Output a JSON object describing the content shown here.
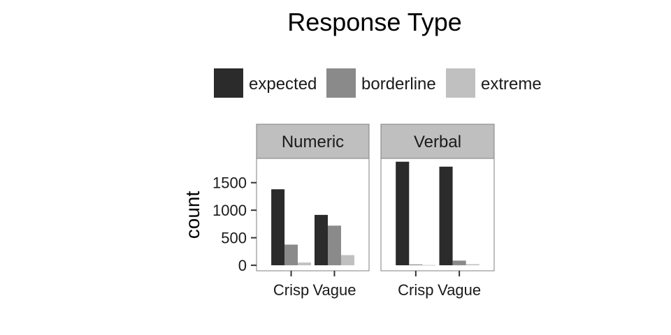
{
  "chart_data": {
    "type": "bar",
    "title": "Response Type",
    "ylabel": "count",
    "xlabel": "",
    "ylim": [
      0,
      1900
    ],
    "yticks": [
      0,
      500,
      1000,
      1500
    ],
    "yticks_text": [
      "0",
      "500",
      "1000",
      "1500"
    ],
    "categories": [
      "Crisp",
      "Vague"
    ],
    "legend": {
      "position": "top",
      "entries": [
        {
          "name": "expected",
          "color": "#2b2b2b"
        },
        {
          "name": "borderline",
          "color": "#8a8a8a"
        },
        {
          "name": "extreme",
          "color": "#c0c0c0"
        }
      ]
    },
    "panels": [
      {
        "facet": "Numeric",
        "series": [
          {
            "name": "expected",
            "values": [
              1380,
              915
            ]
          },
          {
            "name": "borderline",
            "values": [
              375,
              720
            ]
          },
          {
            "name": "extreme",
            "values": [
              50,
              185
            ]
          }
        ]
      },
      {
        "facet": "Verbal",
        "series": [
          {
            "name": "expected",
            "values": [
              1880,
              1790
            ]
          },
          {
            "name": "borderline",
            "values": [
              15,
              85
            ]
          },
          {
            "name": "extreme",
            "values": [
              5,
              20
            ]
          }
        ]
      }
    ],
    "grid": false
  }
}
